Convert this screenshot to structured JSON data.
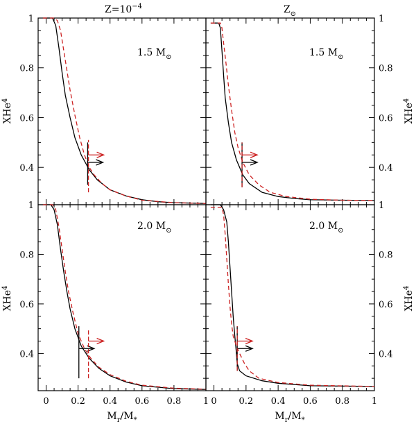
{
  "figure": {
    "column_titles": {
      "left": {
        "main": "Z=10",
        "sup": "−4"
      },
      "right": {
        "main": "Z",
        "sub": "⊙"
      }
    },
    "y_axis_title": {
      "main": "XHe",
      "sup": "4"
    },
    "x_axis_title": {
      "main": "M",
      "sub1": "r",
      "mid": "/M",
      "sub2": "*"
    },
    "mass_labels": {
      "top": {
        "main": "1.5 M",
        "sub": "⊙"
      },
      "bottom": {
        "main": "2.0 M",
        "sub": "⊙"
      }
    },
    "colors": {
      "solid": "#000000",
      "dashed": "#cc2222"
    }
  },
  "chart_data": [
    {
      "type": "line",
      "panel": "top-left",
      "column": "Z=10^-4",
      "mass": "1.5 M_sun",
      "xlim": [
        -0.05,
        1.0
      ],
      "ylim": [
        0.25,
        1.0
      ],
      "x_ticks": [
        0,
        0.2,
        0.4,
        0.6,
        0.8,
        1
      ],
      "y_ticks": [
        0.4,
        0.6,
        0.8,
        1
      ],
      "series": [
        {
          "style": "solid",
          "points": [
            [
              -0.02,
              1.0
            ],
            [
              0.04,
              1.0
            ],
            [
              0.06,
              0.97
            ],
            [
              0.08,
              0.88
            ],
            [
              0.1,
              0.78
            ],
            [
              0.12,
              0.69
            ],
            [
              0.15,
              0.6
            ],
            [
              0.18,
              0.52
            ],
            [
              0.22,
              0.45
            ],
            [
              0.27,
              0.39
            ],
            [
              0.32,
              0.35
            ],
            [
              0.4,
              0.31
            ],
            [
              0.5,
              0.285
            ],
            [
              0.6,
              0.27
            ],
            [
              0.7,
              0.262
            ],
            [
              0.8,
              0.258
            ],
            [
              1.0,
              0.255
            ]
          ]
        },
        {
          "style": "dashed",
          "points": [
            [
              -0.02,
              1.0
            ],
            [
              0.05,
              1.0
            ],
            [
              0.07,
              0.99
            ],
            [
              0.09,
              0.95
            ],
            [
              0.11,
              0.87
            ],
            [
              0.13,
              0.79
            ],
            [
              0.15,
              0.71
            ],
            [
              0.18,
              0.61
            ],
            [
              0.21,
              0.52
            ],
            [
              0.24,
              0.45
            ],
            [
              0.27,
              0.4
            ],
            [
              0.3,
              0.37
            ],
            [
              0.35,
              0.335
            ],
            [
              0.4,
              0.31
            ],
            [
              0.5,
              0.285
            ],
            [
              0.6,
              0.268
            ],
            [
              0.8,
              0.258
            ],
            [
              1.0,
              0.255
            ]
          ]
        }
      ],
      "markers": [
        {
          "style": "solid",
          "x": 0.26,
          "y_range": [
            0.33,
            0.5
          ],
          "arrow_y": 0.42
        },
        {
          "style": "dashed",
          "x": 0.265,
          "y_range": [
            0.3,
            0.51
          ],
          "arrow_y": 0.45
        }
      ]
    },
    {
      "type": "line",
      "panel": "top-right",
      "column": "Z_sun",
      "mass": "1.5 M_sun",
      "xlim": [
        -0.05,
        1.0
      ],
      "ylim": [
        0.25,
        1.0
      ],
      "x_ticks": [
        0,
        0.2,
        0.4,
        0.6,
        0.8,
        1
      ],
      "y_ticks": [
        0.4,
        0.6,
        0.8,
        1
      ],
      "series": [
        {
          "style": "solid",
          "points": [
            [
              -0.02,
              0.98
            ],
            [
              0.03,
              0.98
            ],
            [
              0.04,
              0.96
            ],
            [
              0.05,
              0.87
            ],
            [
              0.06,
              0.77
            ],
            [
              0.07,
              0.68
            ],
            [
              0.09,
              0.58
            ],
            [
              0.11,
              0.5
            ],
            [
              0.14,
              0.43
            ],
            [
              0.18,
              0.37
            ],
            [
              0.22,
              0.335
            ],
            [
              0.3,
              0.3
            ],
            [
              0.4,
              0.283
            ],
            [
              0.5,
              0.275
            ],
            [
              0.6,
              0.27
            ],
            [
              0.8,
              0.268
            ],
            [
              1.0,
              0.267
            ]
          ]
        },
        {
          "style": "dashed",
          "points": [
            [
              -0.02,
              0.98
            ],
            [
              0.04,
              0.98
            ],
            [
              0.05,
              0.96
            ],
            [
              0.06,
              0.9
            ],
            [
              0.075,
              0.82
            ],
            [
              0.09,
              0.73
            ],
            [
              0.11,
              0.63
            ],
            [
              0.13,
              0.54
            ],
            [
              0.15,
              0.48
            ],
            [
              0.18,
              0.42
            ],
            [
              0.22,
              0.37
            ],
            [
              0.28,
              0.33
            ],
            [
              0.35,
              0.3
            ],
            [
              0.45,
              0.283
            ],
            [
              0.6,
              0.272
            ],
            [
              0.8,
              0.268
            ],
            [
              1.0,
              0.267
            ]
          ]
        }
      ],
      "markers": [
        {
          "style": "solid",
          "x": 0.175,
          "y_range": [
            0.32,
            0.5
          ],
          "arrow_y": 0.42
        },
        {
          "style": "dashed",
          "x": 0.175,
          "y_range": [
            0.32,
            0.5
          ],
          "arrow_y": 0.45
        }
      ]
    },
    {
      "type": "line",
      "panel": "bottom-left",
      "column": "Z=10^-4",
      "mass": "2.0 M_sun",
      "xlim": [
        -0.05,
        1.0
      ],
      "ylim": [
        0.25,
        1.0
      ],
      "x_ticks": [
        0,
        0.2,
        0.4,
        0.6,
        0.8,
        1
      ],
      "y_ticks": [
        0.4,
        0.6,
        0.8,
        1
      ],
      "series": [
        {
          "style": "solid",
          "points": [
            [
              -0.02,
              1.0
            ],
            [
              0.03,
              1.0
            ],
            [
              0.05,
              0.98
            ],
            [
              0.07,
              0.92
            ],
            [
              0.09,
              0.82
            ],
            [
              0.11,
              0.73
            ],
            [
              0.13,
              0.65
            ],
            [
              0.15,
              0.58
            ],
            [
              0.18,
              0.5
            ],
            [
              0.22,
              0.43
            ],
            [
              0.27,
              0.38
            ],
            [
              0.33,
              0.34
            ],
            [
              0.4,
              0.31
            ],
            [
              0.5,
              0.285
            ],
            [
              0.6,
              0.27
            ],
            [
              0.8,
              0.258
            ],
            [
              1.0,
              0.255
            ]
          ]
        },
        {
          "style": "dashed",
          "points": [
            [
              -0.02,
              1.0
            ],
            [
              0.04,
              1.0
            ],
            [
              0.06,
              0.98
            ],
            [
              0.08,
              0.91
            ],
            [
              0.1,
              0.82
            ],
            [
              0.12,
              0.73
            ],
            [
              0.14,
              0.65
            ],
            [
              0.17,
              0.56
            ],
            [
              0.2,
              0.48
            ],
            [
              0.24,
              0.42
            ],
            [
              0.28,
              0.38
            ],
            [
              0.33,
              0.345
            ],
            [
              0.4,
              0.315
            ],
            [
              0.5,
              0.288
            ],
            [
              0.6,
              0.272
            ],
            [
              0.8,
              0.26
            ],
            [
              1.0,
              0.256
            ]
          ]
        }
      ],
      "markers": [
        {
          "style": "solid",
          "x": 0.205,
          "y_range": [
            0.3,
            0.51
          ],
          "arrow_y": 0.42
        },
        {
          "style": "dashed",
          "x": 0.265,
          "y_range": [
            0.3,
            0.5
          ],
          "arrow_y": 0.45
        }
      ]
    },
    {
      "type": "line",
      "panel": "bottom-right",
      "column": "Z_sun",
      "mass": "2.0 M_sun",
      "xlim": [
        -0.05,
        1.0
      ],
      "ylim": [
        0.25,
        1.0
      ],
      "x_ticks": [
        0,
        0.2,
        0.4,
        0.6,
        0.8,
        1
      ],
      "y_ticks": [
        0.4,
        0.6,
        0.8,
        1
      ],
      "series": [
        {
          "style": "solid",
          "points": [
            [
              -0.02,
              1.0
            ],
            [
              0.04,
              1.0
            ],
            [
              0.06,
              0.98
            ],
            [
              0.08,
              0.93
            ],
            [
              0.09,
              0.85
            ],
            [
              0.1,
              0.75
            ],
            [
              0.11,
              0.65
            ],
            [
              0.12,
              0.55
            ],
            [
              0.13,
              0.47
            ],
            [
              0.14,
              0.4
            ],
            [
              0.145,
              0.36
            ],
            [
              0.16,
              0.33
            ],
            [
              0.2,
              0.31
            ],
            [
              0.3,
              0.29
            ],
            [
              0.4,
              0.28
            ],
            [
              0.6,
              0.27
            ],
            [
              1.0,
              0.267
            ]
          ]
        },
        {
          "style": "dashed",
          "points": [
            [
              -0.02,
              0.99
            ],
            [
              0.05,
              0.99
            ],
            [
              0.06,
              0.96
            ],
            [
              0.07,
              0.88
            ],
            [
              0.08,
              0.78
            ],
            [
              0.09,
              0.68
            ],
            [
              0.1,
              0.59
            ],
            [
              0.11,
              0.52
            ],
            [
              0.12,
              0.47
            ],
            [
              0.14,
              0.43
            ],
            [
              0.16,
              0.4
            ],
            [
              0.19,
              0.36
            ],
            [
              0.22,
              0.33
            ],
            [
              0.28,
              0.3
            ],
            [
              0.4,
              0.283
            ],
            [
              0.6,
              0.272
            ],
            [
              1.0,
              0.267
            ]
          ]
        }
      ],
      "markers": [
        {
          "style": "solid",
          "x": 0.145,
          "y_range": [
            0.33,
            0.51
          ],
          "arrow_y": 0.42
        },
        {
          "style": "dashed",
          "x": 0.145,
          "y_range": [
            0.33,
            0.51
          ],
          "arrow_y": 0.45
        }
      ]
    }
  ]
}
